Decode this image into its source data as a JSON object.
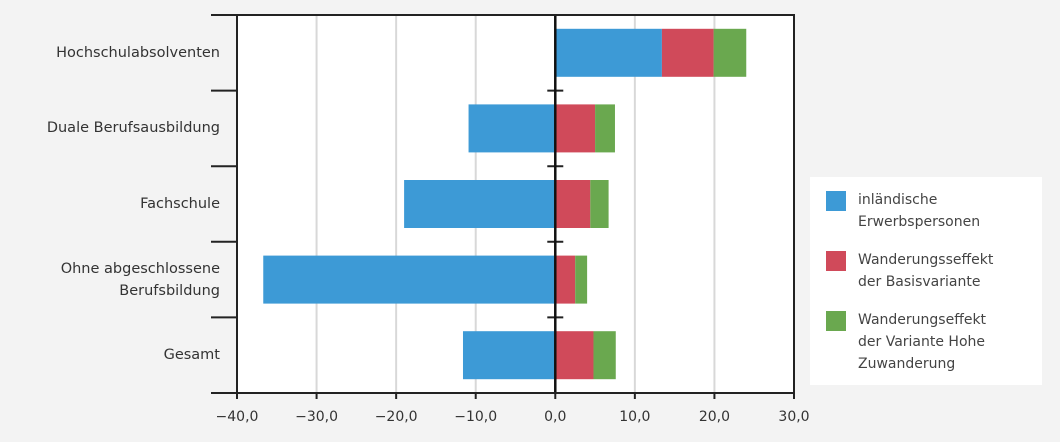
{
  "chart_data": {
    "type": "stacked-horizontal-bar",
    "categories": [
      "Hochschulabsolventen",
      "Duale Berufsausbildung",
      "Fachschule",
      "Ohne abgeschlossene Berufsbildung",
      "Gesamt"
    ],
    "series": [
      {
        "name": "inländische Erwerbspersonen",
        "color": "#3d9ad6",
        "values": [
          13.4,
          -10.9,
          -19.0,
          -36.7,
          -11.6
        ]
      },
      {
        "name": "Wanderungsseffekt der Basisvariante",
        "color": "#d04a5a",
        "values": [
          6.5,
          5.0,
          4.4,
          2.5,
          4.8
        ]
      },
      {
        "name": "Wanderungseffekt der Variante Hohe Zuwanderung",
        "color": "#6aa84f",
        "values": [
          4.1,
          2.5,
          2.3,
          1.5,
          2.8
        ]
      }
    ],
    "xlim": [
      -40,
      30
    ],
    "xticks": [
      {
        "value": -40,
        "label": "−40,0"
      },
      {
        "value": -30,
        "label": "−30,0"
      },
      {
        "value": -20,
        "label": "−20,0"
      },
      {
        "value": -10,
        "label": "−10,0"
      },
      {
        "value": 0,
        "label": "0,0"
      },
      {
        "value": 10,
        "label": "10,0"
      },
      {
        "value": 20,
        "label": "20,0"
      },
      {
        "value": 30,
        "label": "30,0"
      }
    ],
    "grid": true
  }
}
